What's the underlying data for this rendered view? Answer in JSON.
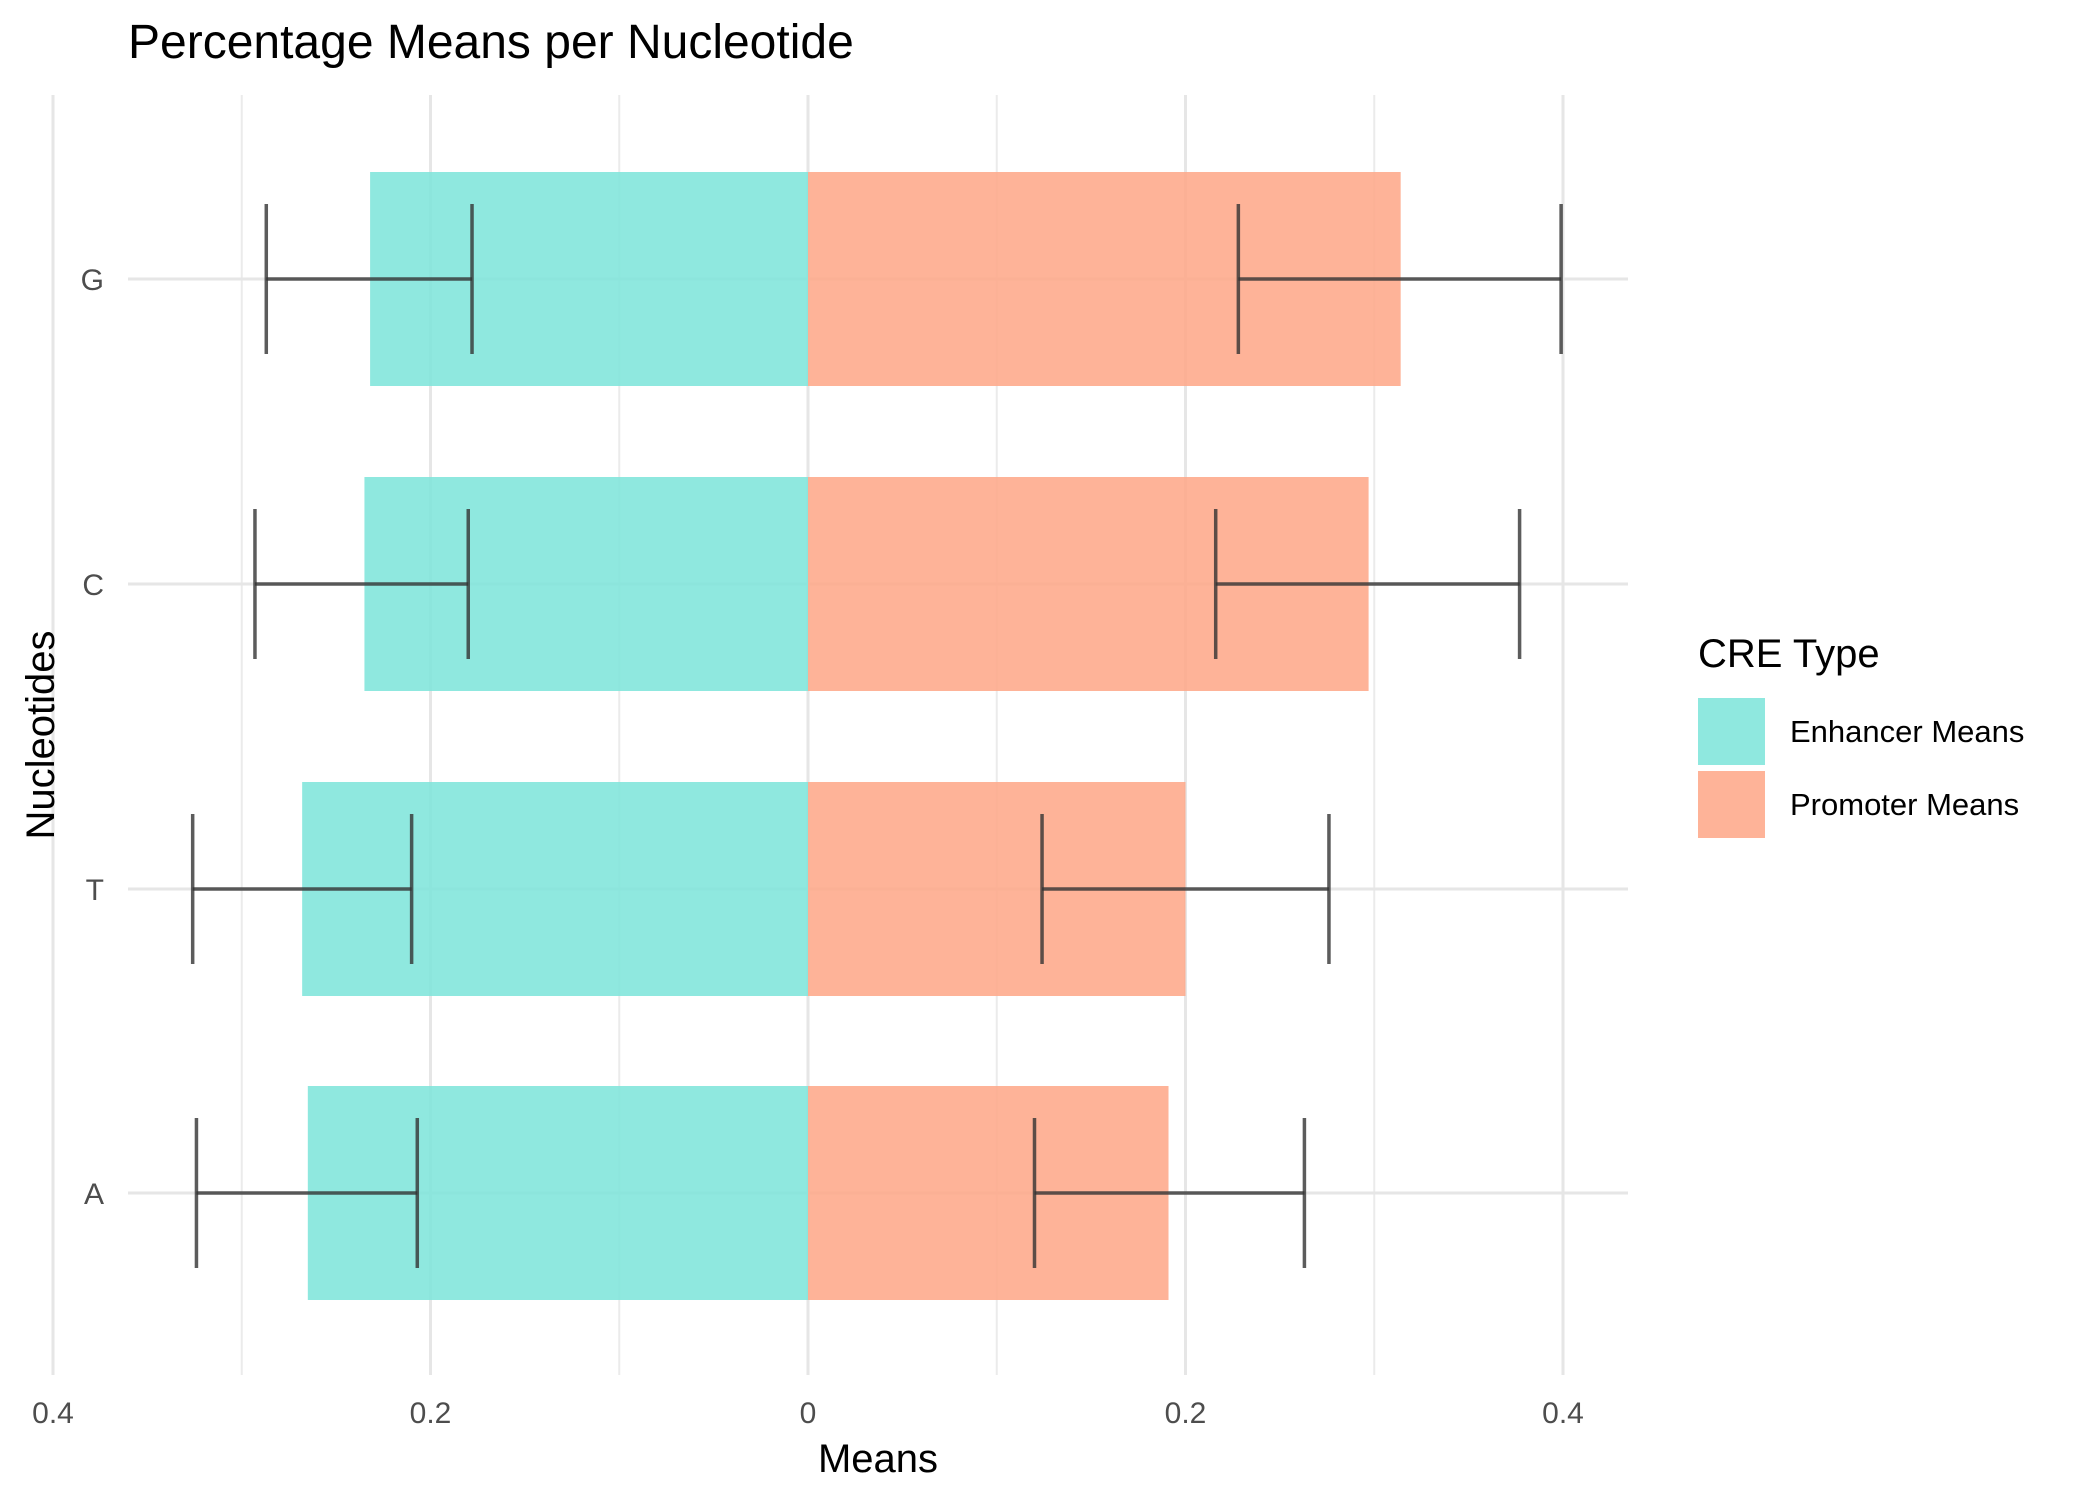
{
  "chart_data": {
    "type": "bar",
    "orientation": "horizontal",
    "title": "Percentage Means per Nucleotide",
    "xlabel": "Means",
    "ylabel": "Nucleotides",
    "categories": [
      "A",
      "T",
      "C",
      "G"
    ],
    "x_ticks": [
      -0.4,
      -0.2,
      0,
      0.2,
      0.4
    ],
    "x_tick_labels": [
      "0.4",
      "0.2",
      "0",
      "0.2",
      "0.4"
    ],
    "xlim": [
      -0.6,
      0.87
    ],
    "grid": true,
    "legend": {
      "title": "CRE Type",
      "placement": "right"
    },
    "series": [
      {
        "name": "Enhancer Means",
        "color": "#7fe5db",
        "values": [
          -0.265,
          -0.268,
          -0.235,
          -0.232
        ],
        "error_low": [
          -0.324,
          -0.326,
          -0.293,
          -0.287
        ],
        "error_high": [
          -0.207,
          -0.21,
          -0.18,
          -0.178
        ]
      },
      {
        "name": "Promoter Means",
        "color": "#fea88a",
        "values": [
          0.191,
          0.2,
          0.297,
          0.314
        ],
        "error_low": [
          0.12,
          0.124,
          0.216,
          0.228
        ],
        "error_high": [
          0.263,
          0.276,
          0.377,
          0.399
        ]
      }
    ]
  }
}
